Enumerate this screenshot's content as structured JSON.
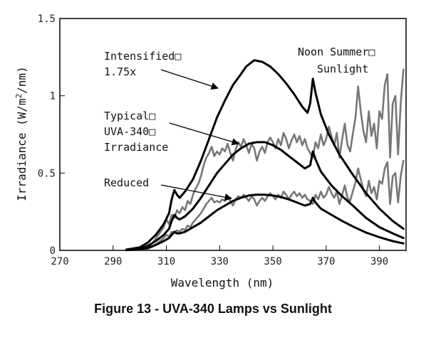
{
  "chart_data": {
    "type": "line",
    "xlabel": "Wavelength (nm)",
    "ylabel_prefix": "Irradiance (W/m",
    "ylabel_sup": "2",
    "ylabel_suffix": "/nm)",
    "xlim": [
      270,
      400
    ],
    "ylim": [
      0,
      1.5
    ],
    "x_ticks": [
      270,
      290,
      310,
      330,
      350,
      370,
      390
    ],
    "x_tick_labels": [
      "270",
      "290",
      "310",
      "330",
      "350",
      "370",
      "390"
    ],
    "y_ticks": [
      0,
      0.5,
      1,
      1.5
    ],
    "y_tick_labels": [
      "0",
      "0.5",
      "1",
      "1.5"
    ],
    "grid": false,
    "legend": "none",
    "series": [
      {
        "name": "Intensified 1.75x",
        "color": "#000000",
        "points": [
          [
            295,
            0.005
          ],
          [
            300,
            0.02
          ],
          [
            303,
            0.05
          ],
          [
            306,
            0.1
          ],
          [
            309,
            0.17
          ],
          [
            311,
            0.24
          ],
          [
            312,
            0.33
          ],
          [
            313,
            0.39
          ],
          [
            314,
            0.36
          ],
          [
            315,
            0.34
          ],
          [
            317,
            0.38
          ],
          [
            320,
            0.46
          ],
          [
            323,
            0.58
          ],
          [
            326,
            0.72
          ],
          [
            329,
            0.86
          ],
          [
            332,
            0.97
          ],
          [
            335,
            1.07
          ],
          [
            338,
            1.14
          ],
          [
            340,
            1.19
          ],
          [
            343,
            1.23
          ],
          [
            346,
            1.22
          ],
          [
            349,
            1.19
          ],
          [
            352,
            1.14
          ],
          [
            355,
            1.08
          ],
          [
            358,
            1.01
          ],
          [
            361,
            0.93
          ],
          [
            363,
            0.89
          ],
          [
            364,
            0.95
          ],
          [
            365,
            1.11
          ],
          [
            366,
            1.02
          ],
          [
            368,
            0.88
          ],
          [
            371,
            0.75
          ],
          [
            375,
            0.62
          ],
          [
            380,
            0.49
          ],
          [
            385,
            0.37
          ],
          [
            390,
            0.27
          ],
          [
            395,
            0.19
          ],
          [
            399,
            0.14
          ]
        ]
      },
      {
        "name": "Typical UVA-340 Irradiance",
        "color": "#000000",
        "points": [
          [
            295,
            0.003
          ],
          [
            300,
            0.01
          ],
          [
            303,
            0.03
          ],
          [
            306,
            0.06
          ],
          [
            309,
            0.1
          ],
          [
            311,
            0.14
          ],
          [
            312,
            0.19
          ],
          [
            313,
            0.23
          ],
          [
            314,
            0.21
          ],
          [
            315,
            0.2
          ],
          [
            317,
            0.22
          ],
          [
            320,
            0.27
          ],
          [
            323,
            0.34
          ],
          [
            326,
            0.42
          ],
          [
            329,
            0.5
          ],
          [
            332,
            0.56
          ],
          [
            335,
            0.62
          ],
          [
            338,
            0.66
          ],
          [
            341,
            0.69
          ],
          [
            344,
            0.7
          ],
          [
            347,
            0.7
          ],
          [
            350,
            0.68
          ],
          [
            353,
            0.65
          ],
          [
            356,
            0.61
          ],
          [
            359,
            0.57
          ],
          [
            362,
            0.53
          ],
          [
            364,
            0.55
          ],
          [
            365,
            0.64
          ],
          [
            366,
            0.59
          ],
          [
            368,
            0.51
          ],
          [
            372,
            0.42
          ],
          [
            376,
            0.35
          ],
          [
            380,
            0.29
          ],
          [
            385,
            0.21
          ],
          [
            390,
            0.15
          ],
          [
            395,
            0.11
          ],
          [
            399,
            0.08
          ]
        ]
      },
      {
        "name": "Reduced",
        "color": "#000000",
        "points": [
          [
            295,
            0.002
          ],
          [
            300,
            0.006
          ],
          [
            303,
            0.016
          ],
          [
            306,
            0.035
          ],
          [
            309,
            0.06
          ],
          [
            311,
            0.08
          ],
          [
            312,
            0.1
          ],
          [
            313,
            0.12
          ],
          [
            314,
            0.11
          ],
          [
            315,
            0.11
          ],
          [
            317,
            0.12
          ],
          [
            320,
            0.15
          ],
          [
            323,
            0.18
          ],
          [
            326,
            0.22
          ],
          [
            329,
            0.26
          ],
          [
            332,
            0.29
          ],
          [
            335,
            0.32
          ],
          [
            338,
            0.34
          ],
          [
            341,
            0.355
          ],
          [
            344,
            0.36
          ],
          [
            347,
            0.36
          ],
          [
            350,
            0.355
          ],
          [
            353,
            0.345
          ],
          [
            356,
            0.33
          ],
          [
            359,
            0.31
          ],
          [
            362,
            0.29
          ],
          [
            364,
            0.3
          ],
          [
            365,
            0.34
          ],
          [
            366,
            0.31
          ],
          [
            368,
            0.27
          ],
          [
            372,
            0.23
          ],
          [
            376,
            0.19
          ],
          [
            380,
            0.155
          ],
          [
            385,
            0.115
          ],
          [
            390,
            0.085
          ],
          [
            395,
            0.06
          ],
          [
            399,
            0.045
          ]
        ]
      },
      {
        "name": "Noon Summer Sunlight",
        "color": "#777777",
        "points": [
          [
            300,
            0.01
          ],
          [
            303,
            0.02
          ],
          [
            305,
            0.05
          ],
          [
            307,
            0.1
          ],
          [
            309,
            0.15
          ],
          [
            310,
            0.2
          ],
          [
            311,
            0.17
          ],
          [
            312,
            0.23
          ],
          [
            313,
            0.21
          ],
          [
            314,
            0.26
          ],
          [
            315,
            0.24
          ],
          [
            316,
            0.28
          ],
          [
            317,
            0.26
          ],
          [
            318,
            0.32
          ],
          [
            319,
            0.3
          ],
          [
            320,
            0.36
          ],
          [
            321,
            0.4
          ],
          [
            322,
            0.43
          ],
          [
            323,
            0.48
          ],
          [
            324,
            0.55
          ],
          [
            325,
            0.6
          ],
          [
            326,
            0.63
          ],
          [
            327,
            0.67
          ],
          [
            328,
            0.61
          ],
          [
            329,
            0.64
          ],
          [
            330,
            0.62
          ],
          [
            331,
            0.66
          ],
          [
            332,
            0.64
          ],
          [
            333,
            0.69
          ],
          [
            334,
            0.63
          ],
          [
            335,
            0.58
          ],
          [
            336,
            0.65
          ],
          [
            337,
            0.7
          ],
          [
            338,
            0.67
          ],
          [
            339,
            0.72
          ],
          [
            340,
            0.68
          ],
          [
            341,
            0.63
          ],
          [
            342,
            0.69
          ],
          [
            343,
            0.66
          ],
          [
            344,
            0.58
          ],
          [
            345,
            0.64
          ],
          [
            346,
            0.67
          ],
          [
            347,
            0.63
          ],
          [
            348,
            0.7
          ],
          [
            349,
            0.73
          ],
          [
            350,
            0.7
          ],
          [
            351,
            0.66
          ],
          [
            352,
            0.72
          ],
          [
            353,
            0.68
          ],
          [
            354,
            0.76
          ],
          [
            355,
            0.72
          ],
          [
            356,
            0.66
          ],
          [
            357,
            0.71
          ],
          [
            358,
            0.75
          ],
          [
            359,
            0.7
          ],
          [
            360,
            0.74
          ],
          [
            361,
            0.68
          ],
          [
            362,
            0.72
          ],
          [
            363,
            0.66
          ],
          [
            364,
            0.63
          ],
          [
            365,
            0.6
          ],
          [
            366,
            0.7
          ],
          [
            367,
            0.66
          ],
          [
            368,
            0.75
          ],
          [
            369,
            0.68
          ],
          [
            370,
            0.72
          ],
          [
            371,
            0.8
          ],
          [
            372,
            0.74
          ],
          [
            373,
            0.68
          ],
          [
            374,
            0.76
          ],
          [
            375,
            0.6
          ],
          [
            376,
            0.72
          ],
          [
            377,
            0.82
          ],
          [
            378,
            0.68
          ],
          [
            379,
            0.64
          ],
          [
            380,
            0.75
          ],
          [
            381,
            0.86
          ],
          [
            382,
            1.06
          ],
          [
            383,
            0.9
          ],
          [
            384,
            0.77
          ],
          [
            385,
            0.7
          ],
          [
            386,
            0.9
          ],
          [
            387,
            0.74
          ],
          [
            388,
            0.82
          ],
          [
            389,
            0.66
          ],
          [
            390,
            0.9
          ],
          [
            391,
            0.85
          ],
          [
            392,
            1.07
          ],
          [
            393,
            1.14
          ],
          [
            394,
            0.6
          ],
          [
            395,
            0.95
          ],
          [
            396,
            1.0
          ],
          [
            397,
            0.62
          ],
          [
            398,
            0.95
          ],
          [
            399,
            1.17
          ]
        ]
      },
      {
        "name": "Noon Summer Sunlight (reduced)",
        "color": "#777777",
        "points": [
          [
            300,
            0.005
          ],
          [
            303,
            0.01
          ],
          [
            305,
            0.025
          ],
          [
            307,
            0.05
          ],
          [
            309,
            0.08
          ],
          [
            310,
            0.1
          ],
          [
            311,
            0.09
          ],
          [
            312,
            0.12
          ],
          [
            313,
            0.11
          ],
          [
            314,
            0.13
          ],
          [
            315,
            0.12
          ],
          [
            316,
            0.14
          ],
          [
            317,
            0.13
          ],
          [
            318,
            0.16
          ],
          [
            319,
            0.15
          ],
          [
            320,
            0.18
          ],
          [
            321,
            0.2
          ],
          [
            322,
            0.22
          ],
          [
            323,
            0.24
          ],
          [
            324,
            0.27
          ],
          [
            325,
            0.3
          ],
          [
            326,
            0.32
          ],
          [
            327,
            0.34
          ],
          [
            328,
            0.31
          ],
          [
            329,
            0.32
          ],
          [
            330,
            0.31
          ],
          [
            331,
            0.33
          ],
          [
            332,
            0.32
          ],
          [
            333,
            0.35
          ],
          [
            334,
            0.32
          ],
          [
            335,
            0.29
          ],
          [
            336,
            0.33
          ],
          [
            337,
            0.35
          ],
          [
            338,
            0.34
          ],
          [
            339,
            0.36
          ],
          [
            340,
            0.34
          ],
          [
            341,
            0.32
          ],
          [
            342,
            0.35
          ],
          [
            343,
            0.33
          ],
          [
            344,
            0.29
          ],
          [
            345,
            0.32
          ],
          [
            346,
            0.34
          ],
          [
            347,
            0.32
          ],
          [
            348,
            0.35
          ],
          [
            349,
            0.37
          ],
          [
            350,
            0.35
          ],
          [
            351,
            0.33
          ],
          [
            352,
            0.36
          ],
          [
            353,
            0.34
          ],
          [
            354,
            0.38
          ],
          [
            355,
            0.36
          ],
          [
            356,
            0.33
          ],
          [
            357,
            0.36
          ],
          [
            358,
            0.38
          ],
          [
            359,
            0.35
          ],
          [
            360,
            0.37
          ],
          [
            361,
            0.34
          ],
          [
            362,
            0.36
          ],
          [
            363,
            0.33
          ],
          [
            364,
            0.32
          ],
          [
            365,
            0.3
          ],
          [
            366,
            0.36
          ],
          [
            367,
            0.33
          ],
          [
            368,
            0.38
          ],
          [
            369,
            0.34
          ],
          [
            370,
            0.36
          ],
          [
            371,
            0.41
          ],
          [
            372,
            0.37
          ],
          [
            373,
            0.34
          ],
          [
            374,
            0.38
          ],
          [
            375,
            0.3
          ],
          [
            376,
            0.36
          ],
          [
            377,
            0.42
          ],
          [
            378,
            0.34
          ],
          [
            379,
            0.32
          ],
          [
            380,
            0.38
          ],
          [
            381,
            0.44
          ],
          [
            382,
            0.53
          ],
          [
            383,
            0.46
          ],
          [
            384,
            0.39
          ],
          [
            385,
            0.35
          ],
          [
            386,
            0.45
          ],
          [
            387,
            0.37
          ],
          [
            388,
            0.41
          ],
          [
            389,
            0.33
          ],
          [
            390,
            0.45
          ],
          [
            391,
            0.43
          ],
          [
            392,
            0.53
          ],
          [
            393,
            0.57
          ],
          [
            394,
            0.3
          ],
          [
            395,
            0.48
          ],
          [
            396,
            0.5
          ],
          [
            397,
            0.31
          ],
          [
            398,
            0.48
          ],
          [
            399,
            0.58
          ]
        ]
      }
    ],
    "annotations": [
      {
        "lines": [
          "Intensified□",
          "1.75x"
        ],
        "point_to": [
          333,
          1.0
        ]
      },
      {
        "lines": [
          "Noon Summer□",
          "Sunlight"
        ]
      },
      {
        "lines": [
          "Typical□",
          "UVA-340□",
          "Irradiance"
        ],
        "point_to": [
          343,
          0.67
        ]
      },
      {
        "lines": [
          "Reduced"
        ],
        "point_to": [
          333,
          0.32
        ]
      }
    ]
  },
  "caption": "Figure 13 - UVA-340 Lamps vs Sunlight"
}
